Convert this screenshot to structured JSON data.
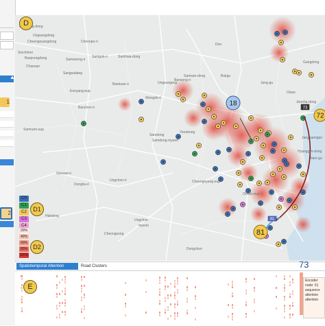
{
  "view_tags": {
    "d": "D",
    "d1": "D1",
    "d2": "D2",
    "e": "E"
  },
  "sidebar": {
    "badge_label": "1",
    "clusters_box_label": "2"
  },
  "map": {
    "place_labels": [
      "Goejeong-dong",
      "Ungsangdong",
      "Cheongnyangdong",
      "Sinchimni",
      "Baejeongdong",
      "Samseong-ri",
      "Samgok-ri",
      "Samhwa-dong",
      "Cheonpo-ri",
      "Chaesan",
      "Sangsadang",
      "Doo",
      "Eonyang-eup",
      "Banchon-ri",
      "Wongdo-ri",
      "Samnam-eup",
      "Samdong",
      "Samdong-myeon",
      "Ungchon",
      "myeon",
      "Cheongnyang-eup",
      "Onsan-eup",
      "Geosan-ri",
      "Dongbu-ri",
      "Baeksan-ri",
      "Bansong-ri",
      "Ungchon-ri",
      "Hakdong",
      "Ungsangeup",
      "Samsan-dong",
      "Ulsan",
      "Gangdong",
      "Jangsaengpo",
      "Jeonha-dong",
      "Jung-gu",
      "Nam-gu",
      "Bukgu",
      "Yeonbong",
      "Cheongsong",
      "Hyanggyo-dong",
      "Mipo",
      "Dongchon"
    ],
    "callouts": [
      {
        "id": "c18",
        "label": "18"
      },
      {
        "id": "c72",
        "label": "72"
      },
      {
        "id": "c73",
        "label": "73"
      },
      {
        "id": "c81",
        "label": "81"
      },
      {
        "id": "c81s",
        "label": "81"
      }
    ]
  },
  "cluster_legend": {
    "items": [
      {
        "label": "C0",
        "color": "#3b6db5"
      },
      {
        "label": "C1",
        "color": "#2e9e52"
      },
      {
        "label": "C2",
        "color": "#f3c75a"
      },
      {
        "label": "C3",
        "color": "#d972d9"
      },
      {
        "label": "C4",
        "color": "#f2a0d8"
      }
    ]
  },
  "percent_legend": {
    "items": [
      {
        "label": "20%",
        "color": "#fbe4df"
      },
      {
        "label": "40%",
        "color": "#f7c3b6"
      },
      {
        "label": "60%",
        "color": "#f29b8a"
      },
      {
        "label": "80%",
        "color": "#e86a5a"
      },
      {
        "label": "100%",
        "color": "#d73a34"
      }
    ]
  },
  "bottom": {
    "tabs": [
      {
        "label": "Spatiotemporal Attention",
        "active": true
      },
      {
        "label": "Road Clusters",
        "active": false
      }
    ],
    "selected_index": "73",
    "tooltip_lines": [
      "Encoder",
      "node: 51",
      "sequence",
      "attention",
      "attention"
    ]
  },
  "colors": {
    "accent": "#2f7fcf",
    "heat": "#e34b3f",
    "route": "#8b1a1a"
  }
}
